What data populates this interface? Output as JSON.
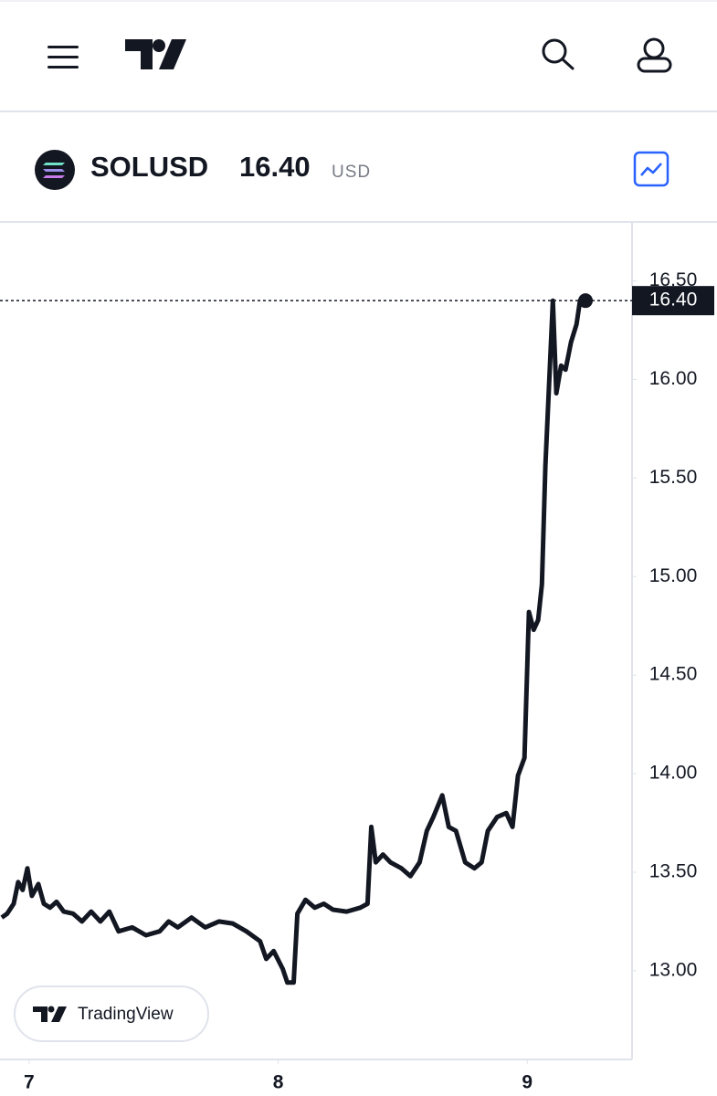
{
  "header": {
    "ticker": "SOLUSD",
    "currency": "USD"
  },
  "watermark": "TradingView",
  "chart_data": {
    "type": "line",
    "color": "#131722",
    "x": [
      6.89,
      6.912,
      6.938,
      6.956,
      6.974,
      6.993,
      7.011,
      7.037,
      7.059,
      7.084,
      7.11,
      7.139,
      7.176,
      7.212,
      7.249,
      7.286,
      7.322,
      7.359,
      7.414,
      7.469,
      7.524,
      7.56,
      7.597,
      7.652,
      7.707,
      7.762,
      7.817,
      7.872,
      7.927,
      7.952,
      7.982,
      8.018,
      8.037,
      8.062,
      8.077,
      8.11,
      8.147,
      8.183,
      8.22,
      8.275,
      8.33,
      8.359,
      8.374,
      8.392,
      8.421,
      8.451,
      8.495,
      8.531,
      8.568,
      8.597,
      8.623,
      8.659,
      8.685,
      8.714,
      8.751,
      8.788,
      8.817,
      8.842,
      8.879,
      8.916,
      8.941,
      8.963,
      8.989,
      9.007,
      9.026,
      9.044,
      9.059,
      9.073,
      9.088,
      9.103,
      9.117,
      9.136,
      9.154,
      9.176,
      9.198,
      9.212,
      9.234
    ],
    "values": [
      13.27,
      13.29,
      13.34,
      13.45,
      13.41,
      13.52,
      13.38,
      13.44,
      13.34,
      13.32,
      13.35,
      13.3,
      13.29,
      13.25,
      13.3,
      13.25,
      13.3,
      13.2,
      13.22,
      13.18,
      13.2,
      13.25,
      13.22,
      13.27,
      13.22,
      13.25,
      13.24,
      13.2,
      13.15,
      13.06,
      13.1,
      13.01,
      12.94,
      12.94,
      13.29,
      13.36,
      13.32,
      13.34,
      13.31,
      13.3,
      13.32,
      13.34,
      13.73,
      13.55,
      13.59,
      13.55,
      13.52,
      13.48,
      13.55,
      13.71,
      13.78,
      13.89,
      13.73,
      13.71,
      13.55,
      13.52,
      13.55,
      13.71,
      13.78,
      13.8,
      13.73,
      13.99,
      14.08,
      14.82,
      14.73,
      14.78,
      14.96,
      15.56,
      15.98,
      16.4,
      15.93,
      16.07,
      16.05,
      16.19,
      16.28,
      16.4,
      16.4
    ],
    "last_price": {
      "value": 16.4,
      "label": "16.40"
    },
    "xlim": [
      6.883,
      9.421
    ],
    "xticks": [
      7,
      8,
      9
    ],
    "ylim": [
      12.55,
      16.79
    ],
    "yticks": [
      {
        "value": 13,
        "label": "13.00"
      },
      {
        "value": 13.5,
        "label": "13.50"
      },
      {
        "value": 14,
        "label": "14.00"
      },
      {
        "value": 14.5,
        "label": "14.50"
      },
      {
        "value": 15,
        "label": "15.00"
      },
      {
        "value": 15.5,
        "label": "15.50"
      },
      {
        "value": 16,
        "label": "16.00"
      },
      {
        "value": 16.5,
        "label": "16.50"
      }
    ]
  }
}
